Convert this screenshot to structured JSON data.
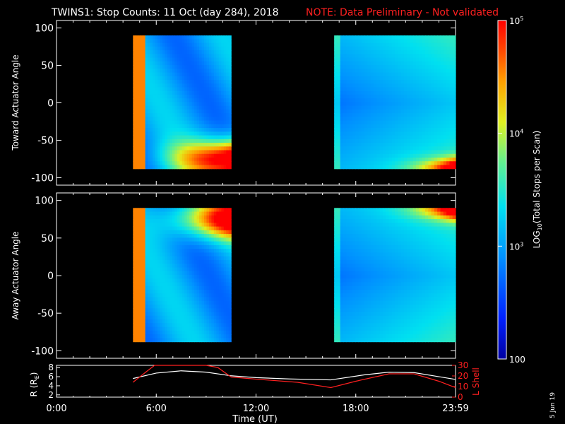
{
  "header": {
    "title": "TWINS1: Stop Counts: 11 Oct (day 284), 2018",
    "note": "NOTE: Data Preliminary - Not validated"
  },
  "colors": {
    "background": "#000000",
    "axis": "#ffffff",
    "note": "#ff2020",
    "lshell": "#ff2020",
    "radius": "#ffffff"
  },
  "chart_data": [
    {
      "type": "heatmap",
      "panel": "toward",
      "ylabel": "Toward Actuator Angle",
      "yticks": [
        "100",
        "50",
        "0",
        "-50",
        "-100"
      ],
      "ylim": [
        -110,
        110
      ],
      "xlim_hours": [
        0,
        24
      ],
      "data_blocks_hours": [
        [
          4.6,
          10.5
        ],
        [
          16.7,
          24.0
        ]
      ],
      "data_angle_range": [
        -88,
        90
      ],
      "colormap": "rainbow-log"
    },
    {
      "type": "heatmap",
      "panel": "away",
      "ylabel": "Away Actuator Angle",
      "yticks": [
        "100",
        "50",
        "0",
        "-50",
        "-100"
      ],
      "ylim": [
        -110,
        110
      ],
      "xlim_hours": [
        0,
        24
      ],
      "data_blocks_hours": [
        [
          4.6,
          10.5
        ],
        [
          16.7,
          24.0
        ]
      ],
      "data_angle_range": [
        -88,
        90
      ],
      "colormap": "rainbow-log"
    },
    {
      "type": "line",
      "panel": "orbit",
      "xlabel": "Time (UT)",
      "xticks": [
        "0:00",
        "6:00",
        "12:00",
        "18:00",
        "23:59"
      ],
      "ylabel_left": "R (R",
      "ylabel_left_sub": "E",
      "ylabel_left_end": ")",
      "ylabel_right": "L Shell",
      "yticks_left": [
        "8",
        "6",
        "4",
        "2"
      ],
      "yticks_right": [
        "30",
        "20",
        "10",
        "0"
      ],
      "ylim_left": [
        1.5,
        8.5
      ],
      "ylim_right": [
        0,
        30
      ],
      "series": [
        {
          "name": "R",
          "x": [
            4.6,
            6.0,
            7.5,
            9.0,
            10.5,
            12.0,
            14.0,
            16.5,
            18.5,
            20.0,
            21.5,
            23.0,
            24.0
          ],
          "y": [
            5.6,
            6.8,
            7.3,
            7.0,
            6.2,
            5.8,
            5.5,
            5.3,
            6.4,
            7.0,
            6.9,
            6.0,
            5.4
          ]
        },
        {
          "name": "L Shell",
          "x": [
            4.6,
            5.4,
            5.9,
            6.1,
            9.0,
            9.7,
            10.5,
            12.0,
            14.5,
            16.5,
            18.0,
            20.0,
            21.5,
            23.0,
            24.0
          ],
          "y": [
            14,
            24,
            31,
            31,
            31,
            28,
            19,
            17,
            14,
            9,
            15,
            22,
            22,
            15,
            9
          ]
        }
      ]
    }
  ],
  "colorbar": {
    "label_prefix": "LOG",
    "label_sub": "10",
    "label_suffix": "(Total Stops per Scan)",
    "ticks": [
      {
        "base": "10",
        "exp": "5",
        "plain": ""
      },
      {
        "base": "10",
        "exp": "4",
        "plain": ""
      },
      {
        "base": "10",
        "exp": "3",
        "plain": ""
      },
      {
        "base": "",
        "exp": "",
        "plain": "100"
      }
    ],
    "log_range": [
      2,
      5
    ]
  },
  "footer": {
    "date": "5 Jun 19"
  }
}
